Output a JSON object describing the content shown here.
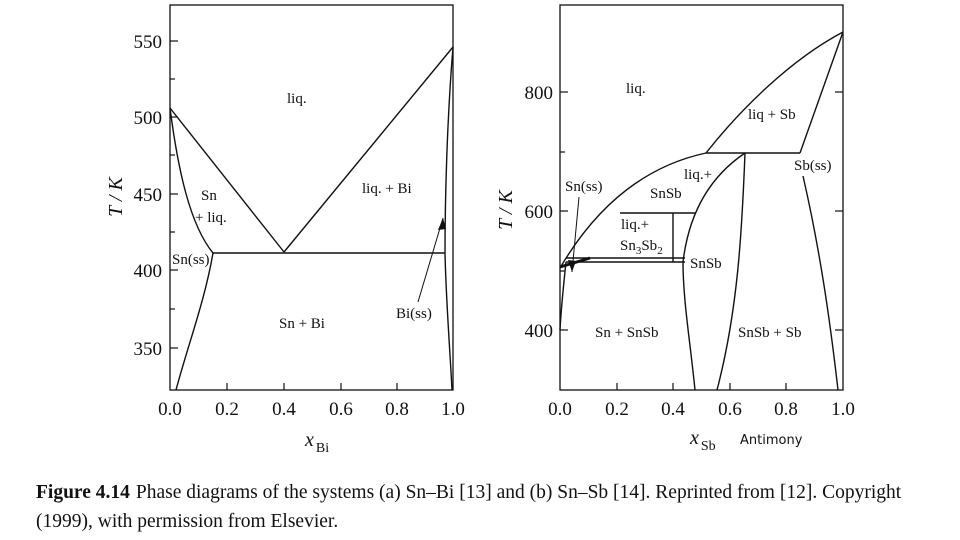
{
  "panel_a": {
    "y_title": "T / K",
    "x_title_var": "x",
    "x_title_sub": "Bi",
    "x_ticks": [
      "0.0",
      "0.2",
      "0.4",
      "0.6",
      "0.8",
      "1.0"
    ],
    "y_ticks": [
      "550",
      "500",
      "450",
      "400",
      "350"
    ],
    "regions": {
      "liq": "liq.",
      "sn_liq_1": "Sn",
      "sn_liq_2": "+ liq.",
      "liq_bi": "liq. + Bi",
      "sn_ss": "Sn(ss)",
      "sn_bi": "Sn + Bi",
      "bi_ss": "Bi(ss)"
    }
  },
  "panel_b": {
    "y_title": "T / K",
    "x_title_var": "x",
    "x_title_sub": "Sb",
    "x_annotation": "Antimony",
    "x_ticks": [
      "0.0",
      "0.2",
      "0.4",
      "0.6",
      "0.8",
      "1.0"
    ],
    "y_ticks": [
      "800",
      "600",
      "400"
    ],
    "regions": {
      "liq": "liq.",
      "liq_sb": "liq + Sb",
      "sb_ss": "Sb(ss)",
      "sn_ss": "Sn(ss)",
      "liq_snsb_top": "SnSb",
      "liq_plus": "liq.+",
      "liq_plus_2": "liq.+",
      "sn3sb2_a": "Sn",
      "sn3sb2_b": "3",
      "sn3sb2_c": "Sb",
      "sn3sb2_d": "2",
      "snsb_mid": "SnSb",
      "sn_snsb": "Sn + SnSb",
      "snsb_sb": "SnSb + Sb"
    }
  },
  "caption": {
    "label": "Figure 4.14",
    "text": "Phase diagrams of the systems (a) Sn–Bi [13] and (b) Sn–Sb [14]. Reprinted from [12]. Copyright (1999), with permission from Elsevier."
  }
}
